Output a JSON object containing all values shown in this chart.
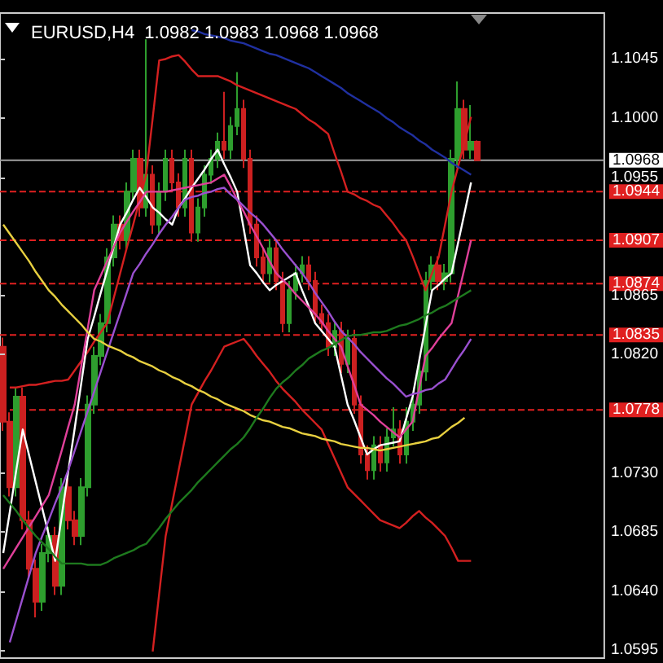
{
  "chart_data": {
    "type": "candlestick",
    "title": "EURUSD,H4  1.0982 1.0983 1.0968 1.0968",
    "categories": [
      null,
      null,
      null,
      null,
      null,
      null,
      null,
      null,
      null,
      null,
      null,
      null,
      null,
      null,
      null,
      null,
      null,
      null,
      null,
      null,
      null,
      null,
      null,
      null,
      null,
      null,
      null,
      null,
      null,
      null,
      null,
      null,
      null,
      null,
      null,
      null,
      null,
      null,
      null,
      null,
      null,
      null,
      null,
      null,
      null,
      null,
      null,
      null,
      null,
      null,
      null,
      null,
      null,
      null,
      null,
      null,
      null,
      null,
      null,
      null,
      null,
      null,
      null,
      null,
      null,
      null,
      null,
      null,
      null,
      null,
      null,
      null,
      null,
      null
    ],
    "colors": [
      "#cc2020",
      "#cc2020",
      "#2e9e2e",
      "#cc2020",
      "#cc2020",
      "#cc2020",
      "#2e9e2e",
      "#2e9e2e",
      "#cc2020",
      "#2e9e2e",
      "#cc2020",
      "#cc2020",
      "#2e9e2e",
      "#2e9e2e",
      "#2e9e2e",
      "#2e9e2e",
      "#2e9e2e",
      "#2e9e2e",
      "#cc2020",
      "#2e9e2e",
      "#2e9e2e",
      "#cc2020",
      "#2e9e2e",
      "#cc2020",
      "#2e9e2e",
      "#2e9e2e",
      "#cc2020",
      "#cc2020",
      "#2e9e2e",
      "#cc2020",
      "#2e9e2e",
      "#2e9e2e",
      "#2e9e2e",
      "#2e9e2e",
      "#cc2020",
      "#2e9e2e",
      "#2e9e2e",
      "#cc2020",
      "#cc2020",
      "#cc2020",
      "#cc2020",
      "#2e9e2e",
      "#cc2020",
      "#cc2020",
      "#2e9e2e",
      "#2e9e2e",
      "#2e9e2e",
      "#cc2020",
      "#cc2020",
      "#cc2020",
      "#cc2020",
      "#2e9e2e",
      "#cc2020",
      "#2e9e2e",
      "#cc2020",
      "#cc2020",
      "#cc2020",
      "#2e9e2e",
      "#cc2020",
      "#2e9e2e",
      "#2e9e2e",
      "#cc2020",
      "#2e9e2e",
      "#2e9e2e",
      "#2e9e2e",
      "#2e9e2e",
      "#2e9e2e",
      "#cc2020",
      "#2e9e2e",
      "#2e9e2e",
      "#2e9e2e",
      "#cc2020",
      "#2e9e2e",
      "#cc2020"
    ],
    "ohlc": [
      [
        1.0826,
        1.0833,
        1.0762,
        1.0769
      ],
      [
        1.0769,
        1.0776,
        1.0712,
        1.0719
      ],
      [
        1.0719,
        1.0795,
        1.0712,
        1.0788
      ],
      [
        1.0788,
        1.0795,
        1.0687,
        1.0694
      ],
      [
        1.0694,
        1.0701,
        1.065,
        1.0657
      ],
      [
        1.0657,
        1.0664,
        1.062,
        1.0632
      ],
      [
        1.0632,
        1.0676,
        1.0625,
        1.0669
      ],
      [
        1.0669,
        1.0689,
        1.0662,
        1.0682
      ],
      [
        1.0682,
        1.0689,
        1.0637,
        1.0644
      ],
      [
        1.0644,
        1.0726,
        1.0637,
        1.0719
      ],
      [
        1.0719,
        1.0726,
        1.0687,
        1.0694
      ],
      [
        1.0694,
        1.0701,
        1.0675,
        1.0682
      ],
      [
        1.0682,
        1.0726,
        1.0675,
        1.0719
      ],
      [
        1.0719,
        1.0789,
        1.0712,
        1.0782
      ],
      [
        1.0782,
        1.0826,
        1.0775,
        1.0819
      ],
      [
        1.0819,
        1.0851,
        1.0812,
        1.0844
      ],
      [
        1.0844,
        1.0901,
        1.0837,
        1.0894
      ],
      [
        1.0894,
        1.0926,
        1.0887,
        1.0919
      ],
      [
        1.0919,
        1.0926,
        1.09,
        1.0907
      ],
      [
        1.0907,
        1.0951,
        1.09,
        1.0944
      ],
      [
        1.0944,
        1.0976,
        1.0937,
        1.0969
      ],
      [
        1.0969,
        1.0976,
        1.0925,
        1.0932
      ],
      [
        1.0932,
        1.106,
        1.0925,
        1.0957
      ],
      [
        1.0957,
        1.0964,
        1.0912,
        1.0919
      ],
      [
        1.0919,
        1.0951,
        1.0912,
        1.0944
      ],
      [
        1.0944,
        1.0976,
        1.0937,
        1.0969
      ],
      [
        1.0969,
        1.0976,
        1.0944,
        1.0951
      ],
      [
        1.0951,
        1.0958,
        1.0925,
        1.0932
      ],
      [
        1.0932,
        1.0976,
        1.0925,
        1.0969
      ],
      [
        1.0969,
        1.0976,
        1.0906,
        1.0913
      ],
      [
        1.0913,
        1.0939,
        1.0906,
        1.0932
      ],
      [
        1.0932,
        1.0964,
        1.0925,
        1.0957
      ],
      [
        1.0957,
        1.0976,
        1.095,
        1.0969
      ],
      [
        1.0969,
        1.0989,
        1.0962,
        1.0982
      ],
      [
        1.0982,
        1.102,
        1.0969,
        1.0976
      ],
      [
        1.0976,
        1.1001,
        1.0969,
        1.0994
      ],
      [
        1.0994,
        1.1035,
        1.0987,
        1.1007
      ],
      [
        1.1007,
        1.1014,
        1.0962,
        1.0969
      ],
      [
        1.0969,
        1.0976,
        1.0912,
        1.0919
      ],
      [
        1.0919,
        1.0926,
        1.0887,
        1.0894
      ],
      [
        1.0894,
        1.0901,
        1.0875,
        1.0882
      ],
      [
        1.0882,
        1.0908,
        1.0875,
        1.0901
      ],
      [
        1.0901,
        1.0908,
        1.0869,
        1.0876
      ],
      [
        1.0876,
        1.0883,
        1.0837,
        1.0844
      ],
      [
        1.0844,
        1.0876,
        1.0837,
        1.0869
      ],
      [
        1.0869,
        1.0889,
        1.0862,
        1.0882
      ],
      [
        1.0882,
        1.0895,
        1.0875,
        1.0888
      ],
      [
        1.0888,
        1.0895,
        1.0869,
        1.0876
      ],
      [
        1.0876,
        1.0883,
        1.0844,
        1.0851
      ],
      [
        1.0851,
        1.0858,
        1.0837,
        1.0844
      ],
      [
        1.0844,
        1.0851,
        1.0819,
        1.0826
      ],
      [
        1.0826,
        1.0845,
        1.0819,
        1.0838
      ],
      [
        1.0838,
        1.0845,
        1.0806,
        1.0813
      ],
      [
        1.0813,
        1.0839,
        1.0806,
        1.0832
      ],
      [
        1.0832,
        1.0839,
        1.0775,
        1.0782
      ],
      [
        1.0782,
        1.0789,
        1.0737,
        1.0744
      ],
      [
        1.0744,
        1.0751,
        1.0725,
        1.0732
      ],
      [
        1.0732,
        1.0758,
        1.0725,
        1.0751
      ],
      [
        1.0751,
        1.0758,
        1.0731,
        1.0738
      ],
      [
        1.0738,
        1.0764,
        1.0731,
        1.0757
      ],
      [
        1.0757,
        1.078,
        1.075,
        1.0763
      ],
      [
        1.0763,
        1.077,
        1.0737,
        1.0744
      ],
      [
        1.0744,
        1.078,
        1.0737,
        1.0769
      ],
      [
        1.0769,
        1.0789,
        1.0762,
        1.0782
      ],
      [
        1.0782,
        1.0814,
        1.0775,
        1.0807
      ],
      [
        1.0807,
        1.0883,
        1.08,
        1.0876
      ],
      [
        1.0876,
        1.0895,
        1.0869,
        1.0888
      ],
      [
        1.0888,
        1.0895,
        1.0869,
        1.0876
      ],
      [
        1.0876,
        1.0889,
        1.0869,
        1.0882
      ],
      [
        1.0882,
        1.0976,
        1.0875,
        1.0969
      ],
      [
        1.0969,
        1.1028,
        1.0962,
        1.1007
      ],
      [
        1.1007,
        1.1014,
        1.0969,
        1.0976
      ],
      [
        1.0976,
        1.101,
        1.0969,
        1.0982
      ],
      [
        1.0982,
        1.0983,
        1.0968,
        1.0968
      ]
    ],
    "series": [
      {
        "type": "line",
        "color": "#d42020",
        "values": [
          null,
          1.0795,
          1.0795,
          1.0796,
          1.0797,
          1.0797,
          1.0798,
          1.0799,
          1.08,
          1.08,
          1.0801,
          1.0808,
          1.0815,
          1.0822,
          1.083,
          1.0837,
          1.0844,
          1.0863,
          1.0882,
          1.0901,
          1.0919,
          1.0938,
          1.0957,
          1.1,
          1.1044,
          1.1045,
          1.1047,
          1.1048,
          1.1043,
          1.1037,
          1.1032,
          1.1032,
          1.1032,
          1.1032,
          1.103,
          1.1028,
          1.1025,
          1.1023,
          1.1021,
          1.1019,
          1.1017,
          1.1015,
          1.1013,
          1.1011,
          1.1009,
          1.1007,
          1.1003,
          1.0999,
          1.0996,
          1.0992,
          1.0988,
          1.0973,
          1.0959,
          1.0944,
          1.0942,
          1.0939,
          1.0937,
          1.0934,
          1.0932,
          1.0926,
          1.092,
          1.0913,
          1.0907,
          1.0895,
          1.0882,
          1.0869,
          1.0882,
          1.0894,
          1.0919,
          1.0944,
          1.0963,
          1.0982,
          1.1001,
          null
        ]
      },
      {
        "type": "line",
        "color": "#d42020",
        "values": [
          null,
          null,
          null,
          null,
          null,
          null,
          null,
          null,
          null,
          null,
          null,
          null,
          null,
          null,
          null,
          null,
          null,
          null,
          null,
          null,
          null,
          null,
          null,
          1.0594,
          1.0638,
          1.0682,
          1.0707,
          1.0732,
          1.0757,
          1.0782,
          1.0791,
          1.08,
          1.0808,
          1.0817,
          1.0826,
          1.0828,
          1.083,
          1.0832,
          1.0826,
          1.0819,
          1.0813,
          1.0807,
          1.08,
          1.0794,
          1.0789,
          1.0784,
          1.0778,
          1.0773,
          1.0768,
          1.0763,
          1.0752,
          1.0741,
          1.073,
          1.0719,
          1.0714,
          1.0709,
          1.0704,
          1.0699,
          1.0694,
          1.0692,
          1.069,
          1.0688,
          1.0692,
          1.0697,
          1.0701,
          1.0696,
          1.0692,
          1.0687,
          1.0682,
          1.0673,
          1.0663,
          1.0663,
          1.0663,
          null
        ]
      },
      {
        "type": "line",
        "color": "#ffffff",
        "values": [
          1.0669,
          1.07,
          1.0732,
          1.0763,
          1.0743,
          1.0723,
          1.0703,
          1.0683,
          1.0663,
          1.0697,
          1.0731,
          1.0764,
          1.0798,
          1.0832,
          1.0849,
          1.0867,
          1.0884,
          1.0902,
          1.0919,
          1.0928,
          1.0938,
          1.0947,
          1.094,
          1.0932,
          1.0928,
          1.0923,
          1.0919,
          1.0932,
          1.0939,
          1.0947,
          1.0954,
          1.0961,
          1.0969,
          1.0976,
          1.0965,
          1.0955,
          1.0944,
          1.0916,
          1.0888,
          1.0882,
          1.0875,
          1.0869,
          1.0873,
          1.0876,
          1.0879,
          1.0882,
          1.0869,
          1.0857,
          1.0844,
          1.0838,
          1.0832,
          1.0826,
          1.0804,
          1.0782,
          1.077,
          1.0757,
          1.0744,
          1.0748,
          1.0751,
          1.0752,
          1.0753,
          1.0754,
          1.0771,
          1.0788,
          1.0815,
          1.0842,
          1.0869,
          1.0873,
          1.0878,
          1.0882,
          1.0905,
          1.0928,
          1.0951,
          null
        ]
      },
      {
        "type": "line",
        "color": "#e0409a",
        "values": [
          1.0657,
          1.0665,
          1.0673,
          1.0681,
          1.0689,
          1.0697,
          1.0705,
          1.0713,
          1.073,
          1.0747,
          1.0765,
          1.0782,
          1.0811,
          1.084,
          1.0869,
          1.088,
          1.0891,
          1.0902,
          1.0913,
          1.0921,
          1.0929,
          1.0936,
          1.0944,
          1.0944,
          1.0944,
          1.0944,
          1.0945,
          1.0946,
          1.0947,
          1.0948,
          1.0949,
          1.095,
          1.0951,
          1.0954,
          1.0957,
          1.0948,
          1.0938,
          1.0929,
          1.0919,
          1.091,
          1.0901,
          1.0891,
          1.0882,
          1.0877,
          1.0872,
          1.0866,
          1.0861,
          1.0856,
          1.0851,
          1.0845,
          1.0838,
          1.0832,
          1.0826,
          1.0811,
          1.0797,
          1.0782,
          1.0778,
          1.0774,
          1.0769,
          1.0765,
          1.0761,
          1.0757,
          1.0763,
          1.0769,
          1.0794,
          1.0819,
          1.0825,
          1.0832,
          1.0838,
          1.0844,
          1.0865,
          1.0886,
          1.0907,
          null
        ]
      },
      {
        "type": "line",
        "color": "#9a50d0",
        "values": [
          null,
          1.0601,
          1.0618,
          1.0635,
          1.0652,
          1.0669,
          1.0682,
          1.0694,
          1.0707,
          1.0719,
          1.0732,
          1.0747,
          1.0762,
          1.0777,
          1.0792,
          1.0807,
          1.0822,
          1.0837,
          1.0852,
          1.0867,
          1.0882,
          1.0889,
          1.0897,
          1.0904,
          1.0912,
          1.0919,
          1.0925,
          1.0932,
          1.0938,
          1.094,
          1.0941,
          1.0943,
          1.0944,
          1.0946,
          1.0947,
          1.0942,
          1.0938,
          1.0933,
          1.0928,
          1.0924,
          1.0919,
          1.0913,
          1.0907,
          1.09,
          1.0894,
          1.0888,
          1.0882,
          1.0875,
          1.0867,
          1.086,
          1.0853,
          1.0845,
          1.0838,
          1.0833,
          1.0828,
          1.0822,
          1.0817,
          1.0812,
          1.0807,
          1.0802,
          1.0798,
          1.0793,
          1.0788,
          1.079,
          1.0791,
          1.0793,
          1.0794,
          1.0798,
          1.0801,
          1.0809,
          1.0817,
          1.0824,
          1.0832,
          null
        ]
      },
      {
        "type": "line",
        "color": "#e8d040",
        "values": [
          1.0919,
          1.0912,
          1.0905,
          1.0898,
          1.0891,
          1.0883,
          1.0876,
          1.0869,
          1.0864,
          1.0858,
          1.0853,
          1.0848,
          1.0843,
          1.0837,
          1.0832,
          1.083,
          1.0827,
          1.0825,
          1.0823,
          1.082,
          1.0818,
          1.0815,
          1.0813,
          1.0811,
          1.0808,
          1.0806,
          1.0803,
          1.0801,
          1.0798,
          1.0796,
          1.0793,
          1.0791,
          1.0788,
          1.0786,
          1.0783,
          1.0781,
          1.0779,
          1.0777,
          1.0774,
          1.0772,
          1.077,
          1.0769,
          1.0767,
          1.0765,
          1.0764,
          1.0762,
          1.076,
          1.0759,
          1.0758,
          1.0756,
          1.0755,
          1.0754,
          1.0752,
          1.0751,
          1.075,
          1.0749,
          1.0749,
          1.0748,
          1.0747,
          1.0748,
          1.0749,
          1.075,
          1.0751,
          1.0752,
          1.0753,
          1.0754,
          1.0756,
          1.0757,
          1.0761,
          1.0765,
          1.0768,
          1.0772,
          null,
          null
        ]
      },
      {
        "type": "line",
        "color": "#1e7a1e",
        "values": [
          1.0713,
          1.0707,
          1.0701,
          1.0694,
          1.0688,
          1.0682,
          1.0677,
          1.0672,
          1.0666,
          1.0661,
          1.0661,
          1.0661,
          1.0661,
          1.066,
          1.066,
          1.066,
          1.0662,
          1.0665,
          1.0667,
          1.0669,
          1.0671,
          1.0674,
          1.0676,
          1.0682,
          1.0688,
          1.0695,
          1.0701,
          1.0707,
          1.0712,
          1.0717,
          1.0723,
          1.0728,
          1.0733,
          1.0738,
          1.0743,
          1.0748,
          1.0752,
          1.0757,
          1.0764,
          1.0772,
          1.0779,
          1.0787,
          1.0794,
          1.0799,
          1.0803,
          1.0808,
          1.0812,
          1.0817,
          1.082,
          1.0823,
          1.0825,
          1.0828,
          1.0831,
          1.0834,
          1.0835,
          1.0835,
          1.0836,
          1.0837,
          1.0837,
          1.0838,
          1.084,
          1.0842,
          1.0843,
          1.0845,
          1.0847,
          1.085,
          1.0852,
          1.0855,
          1.0857,
          1.086,
          1.0863,
          1.0866,
          1.0869,
          null
        ]
      },
      {
        "type": "line",
        "color": "#2030a0",
        "values": [
          null,
          null,
          null,
          null,
          null,
          null,
          null,
          null,
          null,
          null,
          null,
          null,
          null,
          null,
          null,
          null,
          null,
          null,
          null,
          null,
          null,
          null,
          null,
          null,
          null,
          null,
          null,
          null,
          null,
          1.1067,
          1.1066,
          1.1064,
          1.1063,
          1.1062,
          1.1061,
          1.1059,
          1.1058,
          1.1057,
          1.1055,
          1.1053,
          1.1051,
          1.1049,
          1.1048,
          1.1046,
          1.1044,
          1.1042,
          1.104,
          1.1038,
          1.1035,
          1.1032,
          1.1029,
          1.1026,
          1.1023,
          1.1019,
          1.1016,
          1.1013,
          1.101,
          1.1007,
          1.1004,
          1.1,
          1.0997,
          1.0993,
          1.099,
          1.0987,
          1.0983,
          1.098,
          1.0976,
          1.0973,
          1.097,
          1.0966,
          1.0963,
          1.096,
          1.0957,
          null
        ]
      }
    ],
    "ylim": [
      1.0589,
      1.108
    ],
    "yticks": [
      {
        "value": 1.0595,
        "label": "1.0595"
      },
      {
        "value": 1.064,
        "label": "1.0640"
      },
      {
        "value": 1.0685,
        "label": "1.0685"
      },
      {
        "value": 1.073,
        "label": "1.0730"
      },
      {
        "value": 1.082,
        "label": "1.0820"
      },
      {
        "value": 1.0865,
        "label": "1.0865"
      },
      {
        "value": 1.0955,
        "label": "1.0955"
      },
      {
        "value": 1.1,
        "label": "1.1000"
      },
      {
        "value": 1.1045,
        "label": "1.1045"
      }
    ],
    "ref_lines": [
      {
        "axis": "y",
        "value": 1.0968,
        "label": "1.0968",
        "color": "#a0a0a0",
        "line_style": "solid"
      },
      {
        "axis": "y",
        "value": 1.0944,
        "label": "1.0944",
        "color": "#e02020",
        "line_style": "dashed"
      },
      {
        "axis": "y",
        "value": 1.0907,
        "label": "1.0907",
        "color": "#e02020",
        "line_style": "dashed"
      },
      {
        "axis": "y",
        "value": 1.0874,
        "label": "1.0874",
        "color": "#e02020",
        "line_style": "dashed"
      },
      {
        "axis": "y",
        "value": 1.0835,
        "label": "1.0835",
        "color": "#e02020",
        "line_style": "dashed"
      },
      {
        "axis": "y",
        "value": 1.0778,
        "label": "1.0778",
        "color": "#e02020",
        "line_style": "dashed"
      }
    ],
    "tick_labels": "y",
    "grid": false,
    "line_style": "solid"
  }
}
